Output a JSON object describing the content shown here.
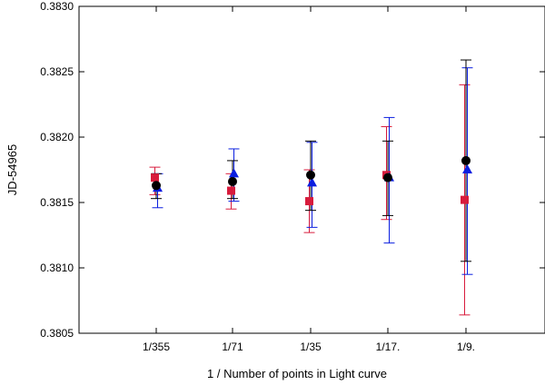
{
  "chart_data": {
    "type": "scatter",
    "title": "",
    "xlabel": "1 / Number of points in Light curve",
    "ylabel": "JD-54965",
    "categories": [
      "1/355",
      "1/71",
      "1/35",
      "1/17.",
      "1/9."
    ],
    "ylim": [
      0.3805,
      0.383
    ],
    "yticks": [
      "0.3805",
      "0.3810",
      "0.3815",
      "0.3820",
      "0.3825",
      "0.3830"
    ],
    "grid": false,
    "series": [
      {
        "name": "red squares",
        "color": "#d81b3c",
        "marker": "square",
        "points": [
          {
            "y": 0.38169,
            "lo": 0.38156,
            "hi": 0.38177
          },
          {
            "y": 0.38159,
            "lo": 0.38145,
            "hi": 0.38172
          },
          {
            "y": 0.38151,
            "lo": 0.38127,
            "hi": 0.38175
          },
          {
            "y": 0.38171,
            "lo": 0.38137,
            "hi": 0.38208
          },
          {
            "y": 0.38152,
            "lo": 0.38064,
            "hi": 0.3824
          }
        ]
      },
      {
        "name": "blue triangles",
        "color": "#0a1ee0",
        "marker": "triangle",
        "points": [
          {
            "y": 0.38161,
            "lo": 0.38146,
            "hi": 0.38172
          },
          {
            "y": 0.38172,
            "lo": 0.38151,
            "hi": 0.38191
          },
          {
            "y": 0.38165,
            "lo": 0.38131,
            "hi": 0.38196
          },
          {
            "y": 0.38169,
            "lo": 0.38119,
            "hi": 0.38215
          },
          {
            "y": 0.38175,
            "lo": 0.38095,
            "hi": 0.38253
          }
        ]
      },
      {
        "name": "black circles",
        "color": "#000000",
        "marker": "circle",
        "points": [
          {
            "y": 0.38163,
            "lo": 0.38153,
            "hi": 0.38172
          },
          {
            "y": 0.38166,
            "lo": 0.38153,
            "hi": 0.38182
          },
          {
            "y": 0.38171,
            "lo": 0.38144,
            "hi": 0.38197
          },
          {
            "y": 0.38169,
            "lo": 0.3814,
            "hi": 0.38197
          },
          {
            "y": 0.38182,
            "lo": 0.38105,
            "hi": 0.38259
          }
        ]
      }
    ]
  }
}
